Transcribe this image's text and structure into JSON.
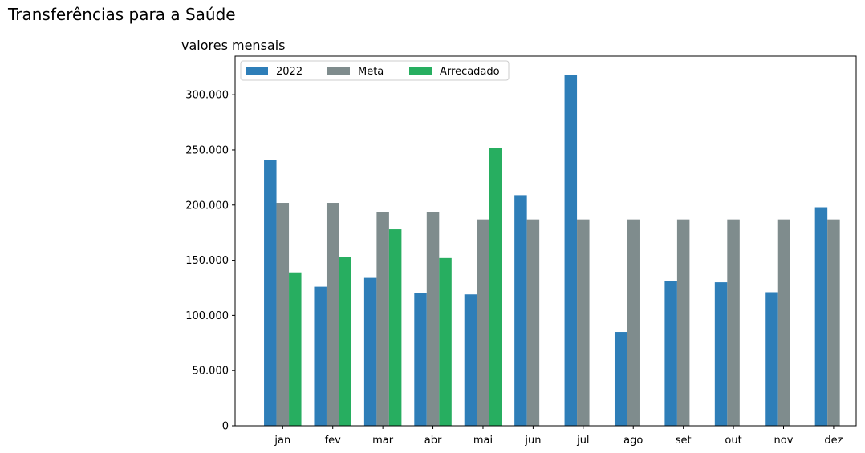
{
  "figure_title": "Transferências para a Saúde",
  "chart_data": {
    "type": "bar",
    "title": "Transferências para a Saúde",
    "subtitle": "valores mensais",
    "xlabel": "",
    "ylabel": "",
    "categories": [
      "jan",
      "fev",
      "mar",
      "abr",
      "mai",
      "jun",
      "jul",
      "ago",
      "set",
      "out",
      "nov",
      "dez"
    ],
    "series": [
      {
        "name": "2022",
        "color": "#2e7eb8",
        "values": [
          241000,
          126000,
          134000,
          120000,
          119000,
          209000,
          318000,
          85000,
          131000,
          130000,
          121000,
          198000
        ]
      },
      {
        "name": "Meta",
        "color": "#7f8c8d",
        "values": [
          202000,
          202000,
          194000,
          194000,
          187000,
          187000,
          187000,
          187000,
          187000,
          187000,
          187000,
          187000
        ]
      },
      {
        "name": "Arrecadado",
        "color": "#27ae60",
        "values": [
          139000,
          153000,
          178000,
          152000,
          252000,
          null,
          null,
          null,
          null,
          null,
          null,
          null
        ]
      }
    ],
    "ylim": [
      0,
      335000
    ],
    "yticks": [
      0,
      50000,
      100000,
      150000,
      200000,
      250000,
      300000
    ],
    "ytick_labels": [
      "0",
      "50.000",
      "100.000",
      "150.000",
      "200.000",
      "250.000",
      "300.000"
    ],
    "grid": false,
    "legend_position": "top-left",
    "legend_layout": "horizontal"
  }
}
